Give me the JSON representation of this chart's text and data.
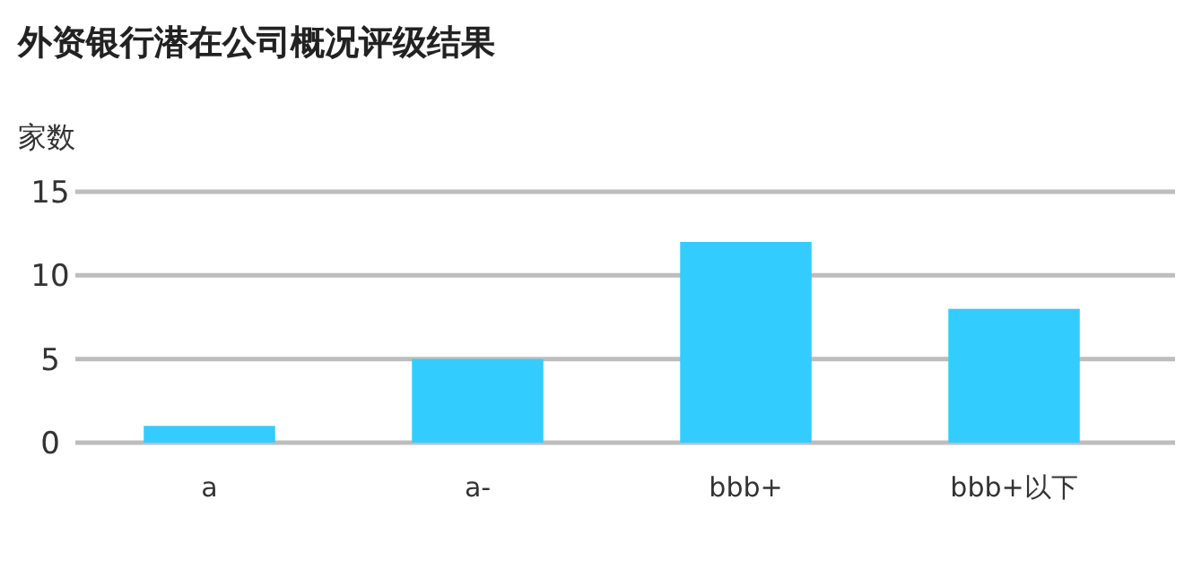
{
  "chart_data": {
    "type": "bar",
    "title": "外资银行潜在公司概况评级结果",
    "ylabel": "家数",
    "categories": [
      "a",
      "a-",
      "bbb+",
      "bbb+以下"
    ],
    "values": [
      1,
      5,
      12,
      8
    ],
    "color": "#33ccff",
    "ylim": [
      0,
      15
    ],
    "yticks": [
      0,
      5,
      10,
      15
    ],
    "grid": "y"
  }
}
